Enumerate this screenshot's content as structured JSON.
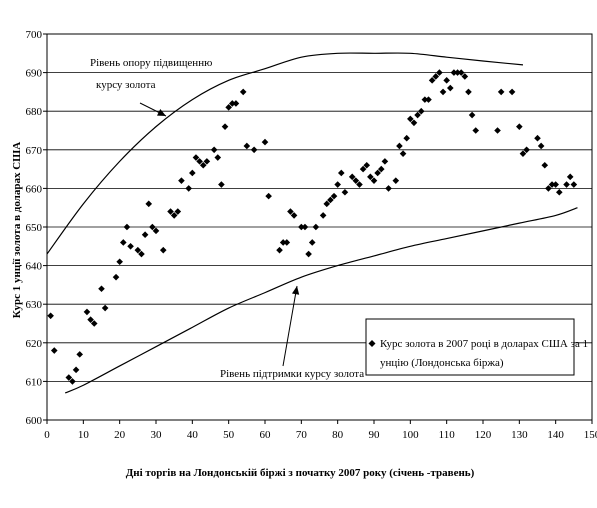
{
  "chart_data": {
    "type": "scatter",
    "title": "",
    "xlabel": "Дні торгів на Лондонській біржі з початку 2007 року (січень -травень)",
    "ylabel": "Курс 1 унції золота в доларах США",
    "xlim": [
      0,
      150
    ],
    "ylim": [
      600,
      700
    ],
    "x_ticks": [
      "0",
      "10",
      "20",
      "30",
      "40",
      "50",
      "60",
      "70",
      "80",
      "90",
      "100",
      "110",
      "120",
      "130",
      "140",
      "150"
    ],
    "y_ticks": [
      "600",
      "610",
      "620",
      "630",
      "640",
      "650",
      "660",
      "670",
      "680",
      "690",
      "700"
    ],
    "grid": "horizontal",
    "legend_position": "bottom-right",
    "series": [
      {
        "name": "Курс золота в 2007 році в доларах США за 1 унцію (Лондонська біржа)",
        "marker": "diamond",
        "x": [
          1,
          2,
          6,
          7,
          8,
          9,
          11,
          12,
          13,
          15,
          16,
          19,
          20,
          21,
          22,
          23,
          25,
          26,
          27,
          28,
          29,
          30,
          32,
          34,
          35,
          36,
          37,
          39,
          40,
          41,
          42,
          43,
          44,
          46,
          47,
          48,
          49,
          50,
          51,
          52,
          54,
          55,
          57,
          60,
          61,
          64,
          65,
          66,
          67,
          68,
          70,
          71,
          72,
          73,
          74,
          76,
          77,
          78,
          79,
          80,
          81,
          82,
          84,
          85,
          86,
          87,
          88,
          89,
          90,
          91,
          92,
          93,
          94,
          96,
          97,
          98,
          99,
          100,
          101,
          102,
          103,
          104,
          105,
          106,
          107,
          108,
          109,
          110,
          111,
          112,
          113,
          114,
          115,
          116,
          117,
          118,
          124,
          125,
          128,
          130,
          131,
          132,
          135,
          136,
          137,
          138,
          139,
          140,
          141,
          143,
          144,
          145
        ],
        "values": [
          627,
          618,
          611,
          610,
          613,
          617,
          628,
          626,
          625,
          634,
          629,
          637,
          641,
          646,
          650,
          645,
          644,
          643,
          648,
          656,
          650,
          649,
          644,
          654,
          653,
          654,
          662,
          660,
          664,
          668,
          667,
          666,
          667,
          670,
          668,
          661,
          676,
          681,
          682,
          682,
          685,
          671,
          670,
          672,
          658,
          644,
          646,
          646,
          654,
          653,
          650,
          650,
          643,
          646,
          650,
          653,
          656,
          657,
          658,
          661,
          664,
          659,
          663,
          662,
          661,
          665,
          666,
          663,
          662,
          664,
          665,
          667,
          660,
          662,
          671,
          669,
          673,
          678,
          677,
          679,
          680,
          683,
          683,
          688,
          689,
          690,
          685,
          688,
          686,
          690,
          690,
          690,
          689,
          685,
          679,
          675,
          675,
          685,
          685,
          676,
          669,
          670,
          673,
          671,
          666,
          660,
          661,
          661,
          659,
          661,
          663,
          661
        ]
      }
    ],
    "annotations": [
      {
        "text": "Рівень опору підвищенню курсу золота"
      },
      {
        "text": "Рівень підтримки курсу золота"
      }
    ],
    "trend_lines": [
      {
        "name": "resistance",
        "x": [
          0,
          10,
          20,
          30,
          40,
          50,
          60,
          70,
          80,
          90,
          100,
          110,
          120,
          131
        ],
        "values": [
          643,
          656,
          667,
          676,
          683,
          688,
          691,
          694,
          695,
          695,
          695,
          694,
          693,
          692
        ]
      },
      {
        "name": "support",
        "x": [
          5,
          10,
          20,
          30,
          40,
          50,
          60,
          70,
          80,
          90,
          100,
          110,
          120,
          130,
          140,
          146
        ],
        "values": [
          607,
          609,
          614,
          619,
          624,
          629,
          633,
          637,
          640,
          642.5,
          645,
          647,
          649,
          651,
          653,
          655
        ]
      }
    ]
  },
  "legend": {
    "line1": "Курс золота в 2007 році в доларах США за 1",
    "line2": "унцію (Лондонська біржа)"
  },
  "annotations": {
    "resistance_line1": "Рівень опору підвищенню",
    "resistance_line2": "курсу золота",
    "support": "Рівень підтримки курсу золота"
  }
}
